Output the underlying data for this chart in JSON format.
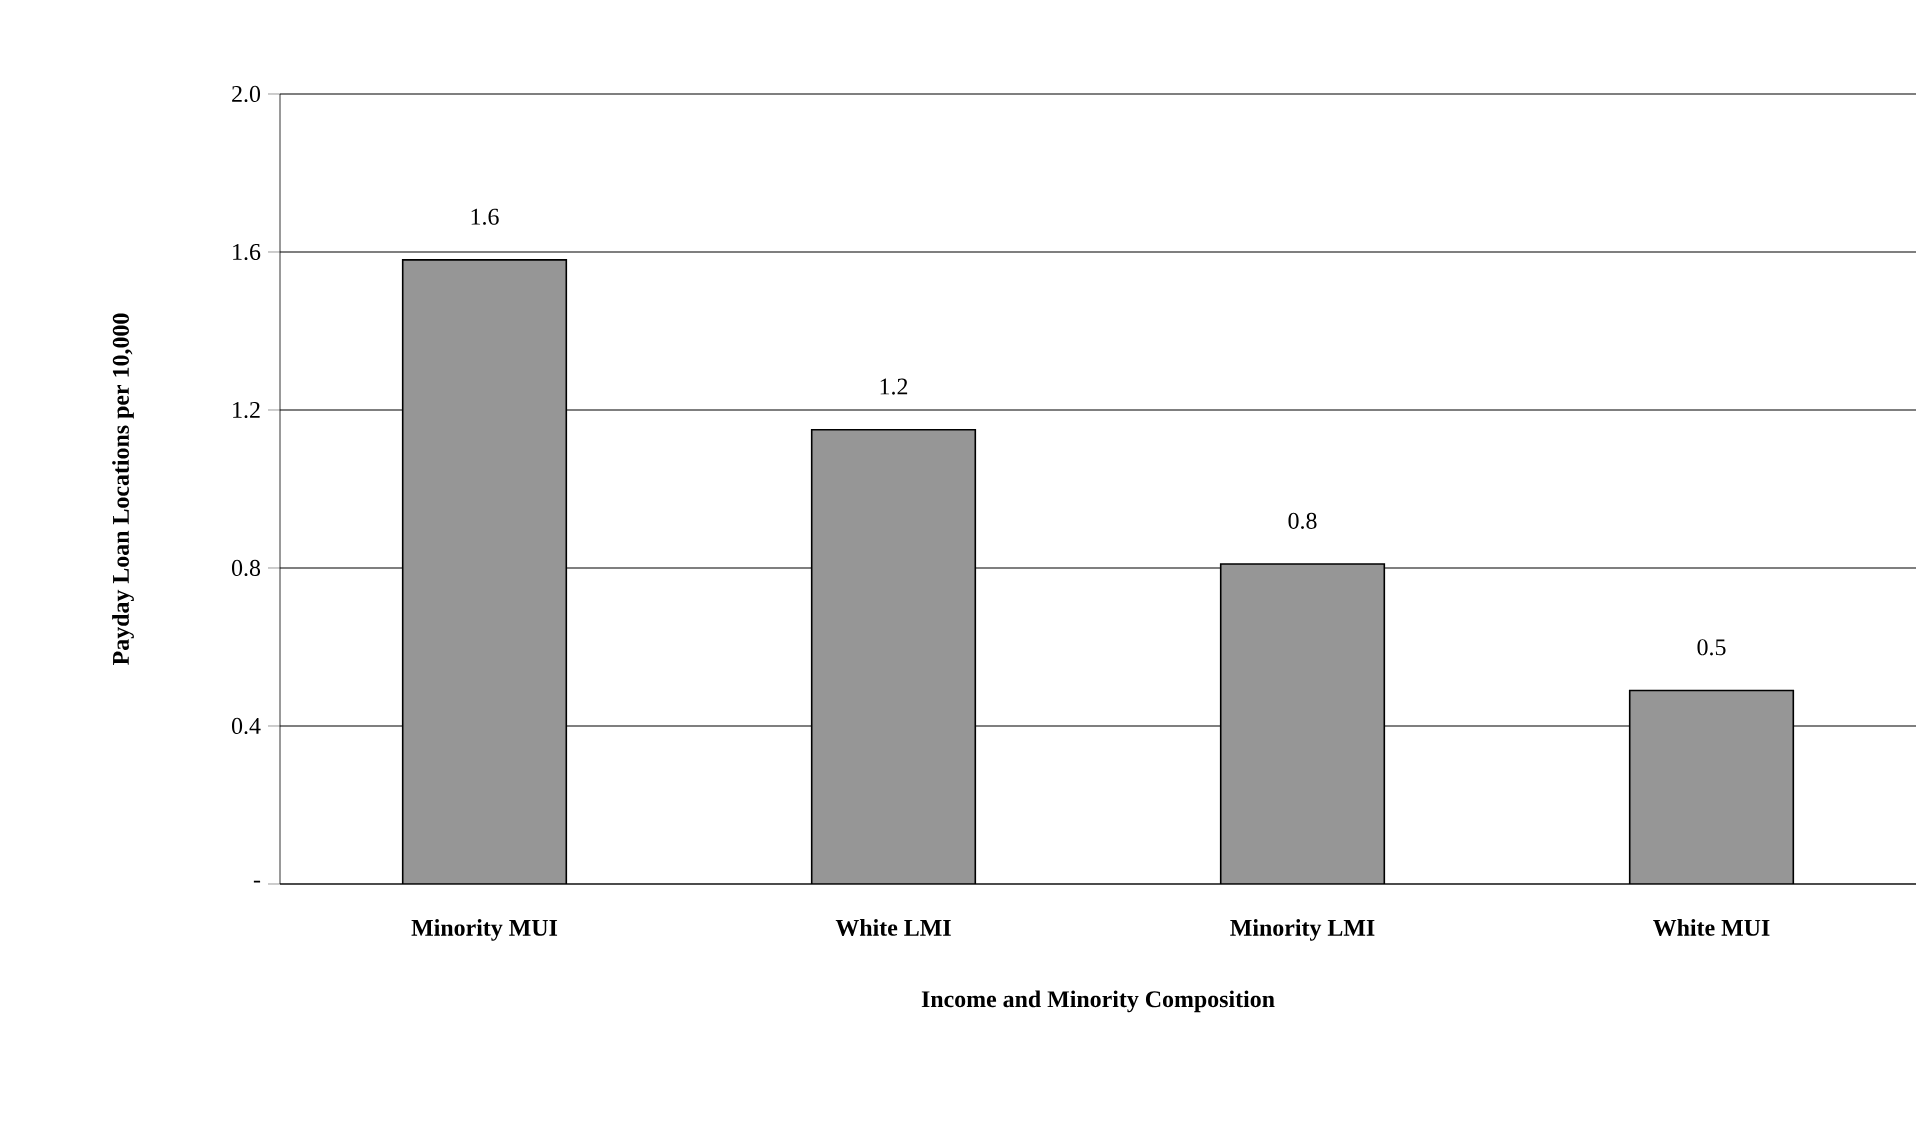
{
  "chart_data": {
    "type": "bar",
    "xlabel": "Income and Minority Composition",
    "ylabel": "Payday Loan Locations per 10,000",
    "categories": [
      "Minority MUI",
      "White LMI",
      "Minority LMI",
      "White MUI"
    ],
    "values": [
      1.58,
      1.15,
      0.81,
      0.49
    ],
    "value_labels": [
      "1.6",
      "1.2",
      "0.8",
      "0.5"
    ],
    "color": "#969696",
    "ylim": [
      0,
      2
    ],
    "yticks": [
      {
        "value": 0,
        "label": "-"
      },
      0.4,
      0.8,
      1.2,
      1.6,
      {
        "value": 2,
        "label": "2.0"
      }
    ],
    "grid": "y"
  }
}
